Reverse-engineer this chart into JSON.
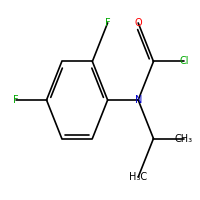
{
  "background_color": "#ffffff",
  "bond_color": "#000000",
  "atom_colors": {
    "F": "#00aa00",
    "O": "#ff0000",
    "N": "#0000cc",
    "Cl": "#00aa00",
    "C": "#000000",
    "H": "#000000"
  },
  "figsize": [
    2.0,
    2.0
  ],
  "dpi": 100,
  "lw": 1.2,
  "fs": 7.0
}
